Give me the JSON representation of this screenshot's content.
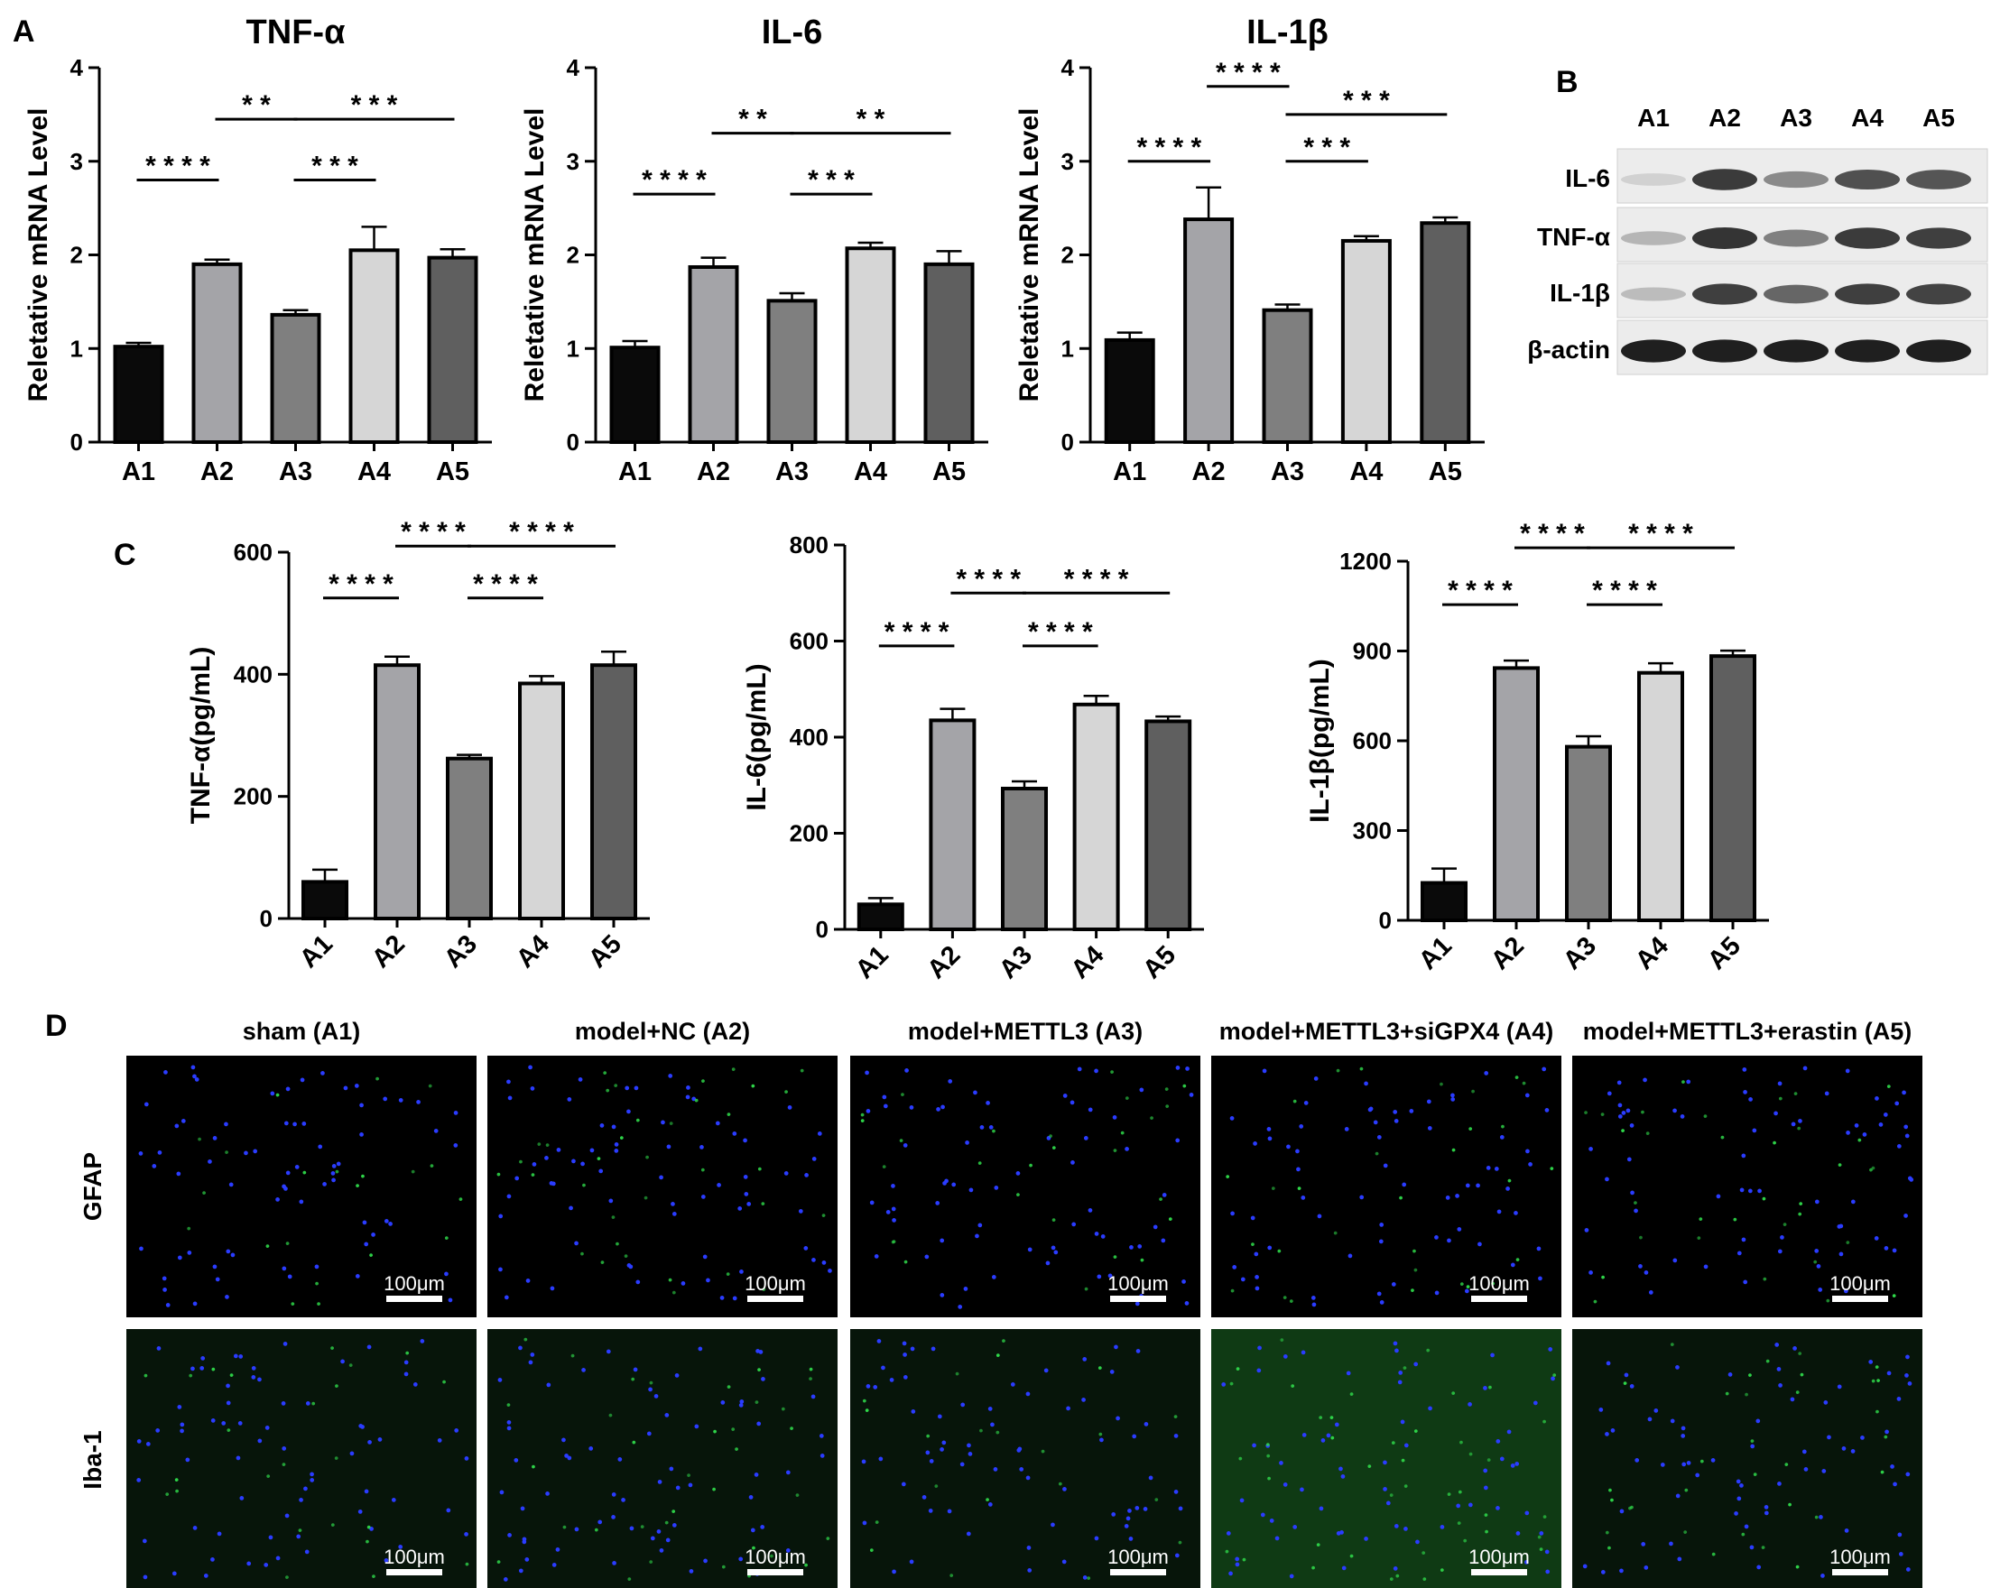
{
  "panels": {
    "A": "A",
    "B": "B",
    "C": "C",
    "D": "D"
  },
  "colors": {
    "A1": "#0a0a0a",
    "A2": "#a4a4a8",
    "A3": "#7f7f7f",
    "A4": "#d6d6d6",
    "A5": "#5f5f5f"
  },
  "chart_data": [
    {
      "id": "mrna-tnfa",
      "type": "bar",
      "title": "TNF-α",
      "ylabel": "Reletative mRNA Level",
      "categories": [
        "A1",
        "A2",
        "A3",
        "A4",
        "A5"
      ],
      "values": [
        1.02,
        1.9,
        1.36,
        2.05,
        1.97
      ],
      "errors": [
        0.04,
        0.05,
        0.05,
        0.25,
        0.09
      ],
      "ylim": [
        0,
        4
      ],
      "yticks": [
        "0",
        "1",
        "2",
        "3",
        "4"
      ],
      "significance": [
        {
          "from": "A1",
          "to": "A2",
          "y": 2.8,
          "label": "* * * *"
        },
        {
          "from": "A2",
          "to": "A3",
          "y": 3.45,
          "label": "* *"
        },
        {
          "from": "A3",
          "to": "A4",
          "y": 2.8,
          "label": "* * *"
        },
        {
          "from": "A3",
          "to": "A5",
          "y": 3.45,
          "label": "* * *"
        }
      ]
    },
    {
      "id": "mrna-il6",
      "type": "bar",
      "title": "IL-6",
      "ylabel": "Reletative mRNA Level",
      "categories": [
        "A1",
        "A2",
        "A3",
        "A4",
        "A5"
      ],
      "values": [
        1.01,
        1.87,
        1.51,
        2.07,
        1.9
      ],
      "errors": [
        0.07,
        0.1,
        0.08,
        0.06,
        0.14
      ],
      "ylim": [
        0,
        4
      ],
      "yticks": [
        "0",
        "1",
        "2",
        "3",
        "4"
      ],
      "significance": [
        {
          "from": "A1",
          "to": "A2",
          "y": 2.65,
          "label": "* * * *"
        },
        {
          "from": "A2",
          "to": "A3",
          "y": 3.3,
          "label": "* *"
        },
        {
          "from": "A3",
          "to": "A4",
          "y": 2.65,
          "label": "* * *"
        },
        {
          "from": "A3",
          "to": "A5",
          "y": 3.3,
          "label": "* *"
        }
      ]
    },
    {
      "id": "mrna-il1b",
      "type": "bar",
      "title": "IL-1β",
      "ylabel": "Reletative mRNA Level",
      "categories": [
        "A1",
        "A2",
        "A3",
        "A4",
        "A5"
      ],
      "values": [
        1.09,
        2.38,
        1.41,
        2.15,
        2.34
      ],
      "errors": [
        0.08,
        0.34,
        0.06,
        0.05,
        0.06
      ],
      "ylim": [
        0,
        4
      ],
      "yticks": [
        "0",
        "1",
        "2",
        "3",
        "4"
      ],
      "significance": [
        {
          "from": "A1",
          "to": "A2",
          "y": 3.0,
          "label": "* * * *"
        },
        {
          "from": "A2",
          "to": "A3",
          "y": 3.8,
          "label": "* * * *"
        },
        {
          "from": "A3",
          "to": "A4",
          "y": 3.0,
          "label": "* * *"
        },
        {
          "from": "A3",
          "to": "A5",
          "y": 3.5,
          "label": "* * *"
        }
      ]
    },
    {
      "id": "elisa-tnfa",
      "type": "bar",
      "ylabel": "TNF-α(pg/mL)",
      "categories": [
        "A1",
        "A2",
        "A3",
        "A4",
        "A5"
      ],
      "values": [
        60,
        415,
        262,
        385,
        415
      ],
      "errors": [
        20,
        14,
        6,
        12,
        22
      ],
      "ylim": [
        0,
        600
      ],
      "yticks": [
        "0",
        "200",
        "400",
        "600"
      ],
      "significance": [
        {
          "from": "A1",
          "to": "A2",
          "y": 525,
          "label": "* * * *"
        },
        {
          "from": "A2",
          "to": "A3",
          "y": 610,
          "label": "* * * *"
        },
        {
          "from": "A3",
          "to": "A4",
          "y": 525,
          "label": "* * * *"
        },
        {
          "from": "A3",
          "to": "A5",
          "y": 610,
          "label": "* * * *"
        }
      ]
    },
    {
      "id": "elisa-il6",
      "type": "bar",
      "ylabel": "IL-6(pg/mL)",
      "categories": [
        "A1",
        "A2",
        "A3",
        "A4",
        "A5"
      ],
      "values": [
        52,
        435,
        293,
        468,
        433
      ],
      "errors": [
        13,
        24,
        15,
        18,
        10
      ],
      "ylim": [
        0,
        800
      ],
      "yticks": [
        "0",
        "200",
        "400",
        "600",
        "800"
      ],
      "significance": [
        {
          "from": "A1",
          "to": "A2",
          "y": 590,
          "label": "* * * *"
        },
        {
          "from": "A2",
          "to": "A3",
          "y": 700,
          "label": "* * * *"
        },
        {
          "from": "A3",
          "to": "A4",
          "y": 590,
          "label": "* * * *"
        },
        {
          "from": "A3",
          "to": "A5",
          "y": 700,
          "label": "* * * *"
        }
      ]
    },
    {
      "id": "elisa-il1b",
      "type": "bar",
      "ylabel": "IL-1β(pg/mL)",
      "categories": [
        "A1",
        "A2",
        "A3",
        "A4",
        "A5"
      ],
      "values": [
        125,
        843,
        580,
        827,
        883
      ],
      "errors": [
        48,
        25,
        35,
        32,
        18
      ],
      "ylim": [
        0,
        1200
      ],
      "yticks": [
        "0",
        "300",
        "600",
        "900",
        "1200"
      ],
      "significance": [
        {
          "from": "A1",
          "to": "A2",
          "y": 1055,
          "label": "* * * *"
        },
        {
          "from": "A2",
          "to": "A3",
          "y": 1245,
          "label": "* * * *"
        },
        {
          "from": "A3",
          "to": "A4",
          "y": 1055,
          "label": "* * * *"
        },
        {
          "from": "A3",
          "to": "A5",
          "y": 1245,
          "label": "* * * *"
        }
      ]
    }
  ],
  "western_blot": {
    "lanes": [
      "A1",
      "A2",
      "A3",
      "A4",
      "A5"
    ],
    "rows": [
      {
        "label": "IL-6",
        "intensity": [
          0.12,
          0.82,
          0.45,
          0.72,
          0.7
        ]
      },
      {
        "label": "TNF-α",
        "intensity": [
          0.25,
          0.85,
          0.5,
          0.82,
          0.8
        ]
      },
      {
        "label": "IL-1β",
        "intensity": [
          0.22,
          0.8,
          0.62,
          0.8,
          0.78
        ]
      },
      {
        "label": "β-actin",
        "intensity": [
          0.95,
          0.95,
          0.95,
          0.95,
          0.95
        ]
      }
    ]
  },
  "fluorescence": {
    "columns": [
      "sham (A1)",
      "model+NC (A2)",
      "model+METTL3 (A3)",
      "model+METTL3+siGPX4 (A4)",
      "model+METTL3+erastin (A5)"
    ],
    "rows": [
      "GFAP",
      "Iba-1"
    ],
    "scale_bar": "100μm",
    "green_level": [
      [
        0.25,
        0.55,
        0.4,
        0.45,
        0.5
      ],
      [
        0.3,
        0.55,
        0.25,
        0.8,
        0.5
      ]
    ],
    "glyph": {
      "nucleus": "●",
      "cell": "•"
    },
    "palette": {
      "nucleus": "#2a3cff",
      "cell": "#2fd84a",
      "iba_background": "#0f3a14"
    }
  }
}
